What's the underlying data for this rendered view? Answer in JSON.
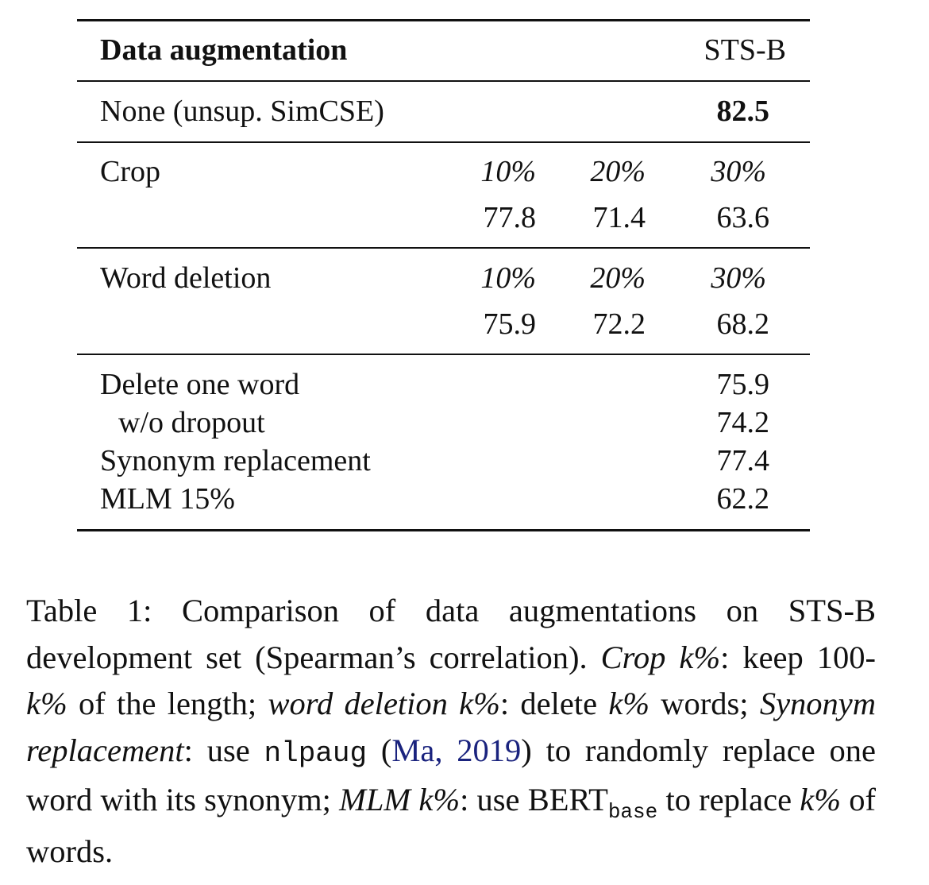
{
  "table": {
    "header": {
      "col_label": "Data augmentation",
      "col_value": "STS-B"
    },
    "none_row": {
      "label": "None (unsup. SimCSE)",
      "value": "82.5"
    },
    "crop": {
      "label": "Crop",
      "rates": [
        "10%",
        "20%",
        "30%"
      ],
      "values": [
        "77.8",
        "71.4",
        "63.6"
      ]
    },
    "word_deletion": {
      "label": "Word deletion",
      "rates": [
        "10%",
        "20%",
        "30%"
      ],
      "values": [
        "75.9",
        "72.2",
        "68.2"
      ]
    },
    "other_rows": [
      {
        "label": "Delete one word",
        "value": "75.9"
      },
      {
        "label": "w/o dropout",
        "value": "74.2"
      },
      {
        "label": "Synonym replacement",
        "value": "77.4"
      },
      {
        "label": "MLM 15%",
        "value": "62.2"
      }
    ]
  },
  "caption": {
    "p1": "Table 1: Comparison of data augmentations on STS-B development set (Spearman’s correlation). ",
    "i1": "Crop k%",
    "p2": ": keep 100-",
    "i2": "k%",
    "p3": " of the length; ",
    "i3": "word deletion k%",
    "p4": ": delete ",
    "i4": "k%",
    "p5": " words; ",
    "i5": "Synonym replacement",
    "p6": ": use ",
    "code": "nlpaug",
    "p7": " (",
    "cite": "Ma, 2019",
    "p8": ") to randomly replace one word with its synonym; ",
    "i6": "MLM k%",
    "p9": ": use BERT",
    "sub": "base",
    "p10": " to replace ",
    "i7": "k%",
    "p11": " of words."
  }
}
